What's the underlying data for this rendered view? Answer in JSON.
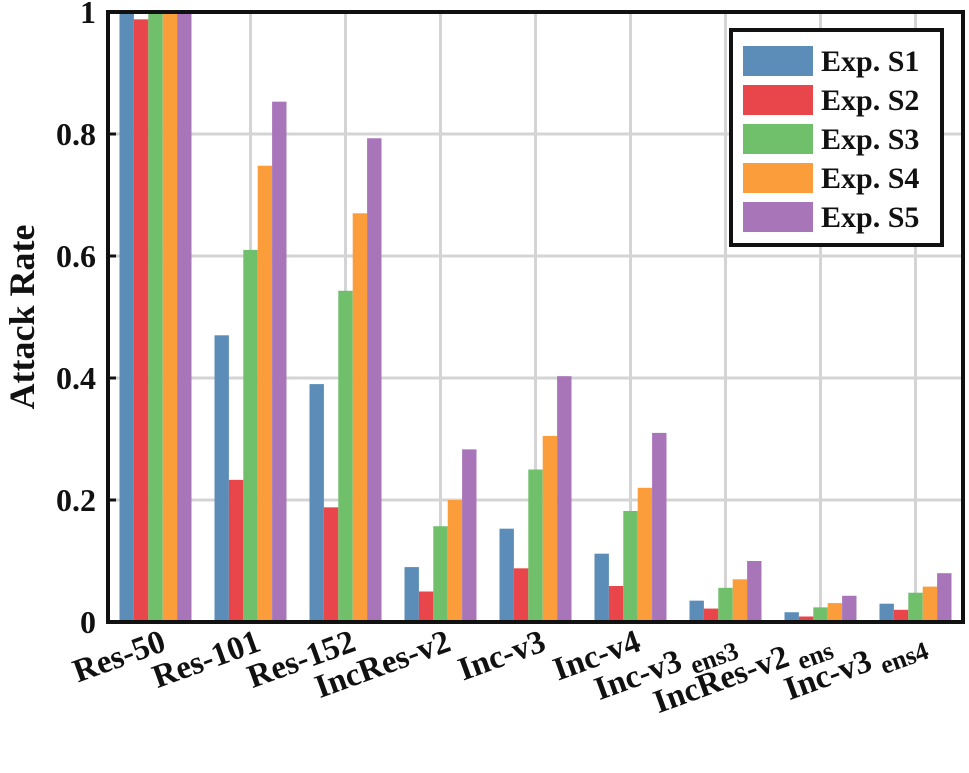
{
  "chart_data": {
    "type": "bar",
    "ylabel": "Attack Rate",
    "xlabel": "",
    "ylim": [
      0,
      1
    ],
    "yticks": [
      "0",
      "0.2",
      "0.4",
      "0.6",
      "0.8",
      "1"
    ],
    "grid": true,
    "legend_position": "top-right",
    "categories": [
      {
        "name": "Res-50",
        "sub": ""
      },
      {
        "name": "Res-101",
        "sub": ""
      },
      {
        "name": "Res-152",
        "sub": ""
      },
      {
        "name": "IncRes-v2",
        "sub": ""
      },
      {
        "name": "Inc-v3",
        "sub": ""
      },
      {
        "name": "Inc-v4",
        "sub": ""
      },
      {
        "name": "Inc-v3",
        "sub": "ens3"
      },
      {
        "name": "IncRes-v2",
        "sub": "ens"
      },
      {
        "name": "Inc-v3",
        "sub": "ens4"
      }
    ],
    "series": [
      {
        "name": "Exp. S1",
        "color": "#5b8db8",
        "values": [
          1.0,
          0.47,
          0.39,
          0.09,
          0.153,
          0.112,
          0.035,
          0.016,
          0.03
        ]
      },
      {
        "name": "Exp. S2",
        "color": "#e8464a",
        "values": [
          0.988,
          0.233,
          0.188,
          0.05,
          0.088,
          0.059,
          0.022,
          0.009,
          0.02
        ]
      },
      {
        "name": "Exp. S3",
        "color": "#6fbf6b",
        "values": [
          1.0,
          0.61,
          0.543,
          0.157,
          0.25,
          0.182,
          0.056,
          0.024,
          0.048
        ]
      },
      {
        "name": "Exp. S4",
        "color": "#fb9d3a",
        "values": [
          1.0,
          0.748,
          0.67,
          0.2,
          0.305,
          0.22,
          0.07,
          0.031,
          0.058
        ]
      },
      {
        "name": "Exp. S5",
        "color": "#a875b8",
        "values": [
          1.0,
          0.853,
          0.793,
          0.283,
          0.403,
          0.31,
          0.1,
          0.043,
          0.08
        ]
      }
    ]
  }
}
